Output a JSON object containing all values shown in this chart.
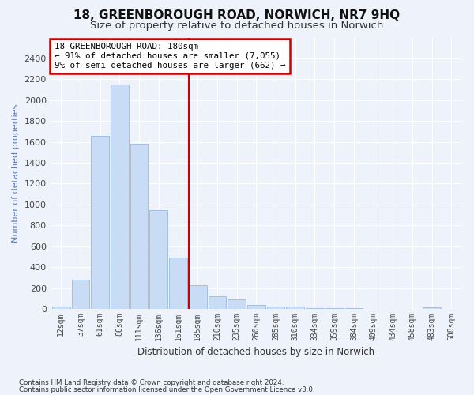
{
  "title1": "18, GREENBOROUGH ROAD, NORWICH, NR7 9HQ",
  "title2": "Size of property relative to detached houses in Norwich",
  "xlabel": "Distribution of detached houses by size in Norwich",
  "ylabel": "Number of detached properties",
  "footnote1": "Contains HM Land Registry data © Crown copyright and database right 2024.",
  "footnote2": "Contains public sector information licensed under the Open Government Licence v3.0.",
  "annotation_line1": "18 GREENBOROUGH ROAD: 180sqm",
  "annotation_line2": "← 91% of detached houses are smaller (7,055)",
  "annotation_line3": "9% of semi-detached houses are larger (662) →",
  "bar_labels": [
    "12sqm",
    "37sqm",
    "61sqm",
    "86sqm",
    "111sqm",
    "136sqm",
    "161sqm",
    "185sqm",
    "210sqm",
    "235sqm",
    "260sqm",
    "285sqm",
    "310sqm",
    "334sqm",
    "359sqm",
    "384sqm",
    "409sqm",
    "434sqm",
    "458sqm",
    "483sqm",
    "508sqm"
  ],
  "bar_values": [
    20,
    280,
    1660,
    2150,
    1580,
    950,
    490,
    230,
    120,
    95,
    35,
    25,
    20,
    10,
    5,
    5,
    3,
    2,
    1,
    15,
    1
  ],
  "bar_color": "#c9dcf5",
  "bar_edge_color": "#9ab8df",
  "vline_index": 7,
  "vline_color": "#cc0000",
  "ylim": [
    0,
    2600
  ],
  "yticks": [
    0,
    200,
    400,
    600,
    800,
    1000,
    1200,
    1400,
    1600,
    1800,
    2000,
    2200,
    2400
  ],
  "annotation_box_color": "#ffffff",
  "annotation_box_edge": "#cc0000",
  "bg_color": "#eef2fb",
  "plot_bg_color": "#eef2fb",
  "grid_color": "#ffffff",
  "title1_fontsize": 11,
  "title2_fontsize": 9.5,
  "ylabel_color": "#5a7ab5",
  "tick_color": "#5a7ab5"
}
